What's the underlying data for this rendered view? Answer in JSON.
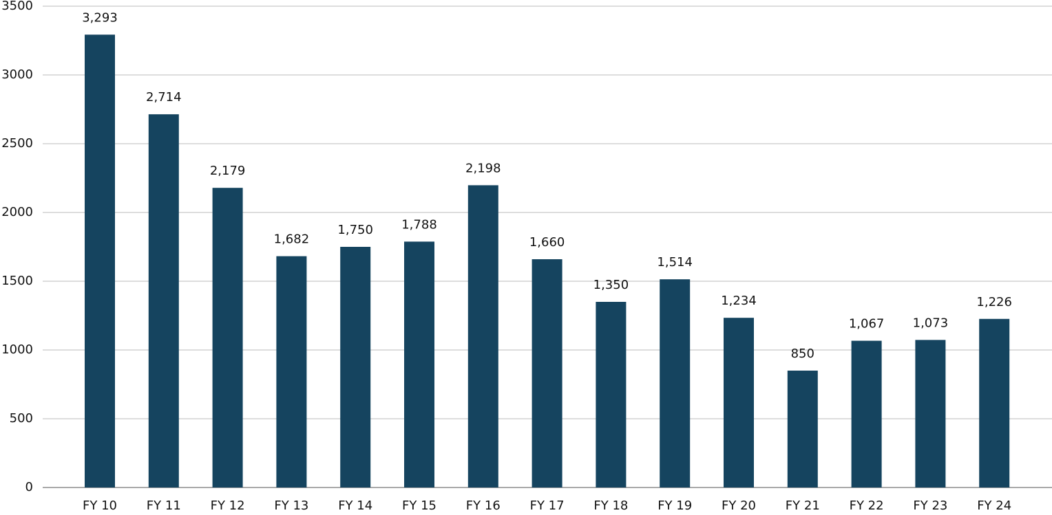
{
  "chart_data": {
    "type": "bar",
    "categories": [
      "FY 10",
      "FY 11",
      "FY 12",
      "FY 13",
      "FY 14",
      "FY 15",
      "FY 16",
      "FY 17",
      "FY 18",
      "FY 19",
      "FY 20",
      "FY 21",
      "FY 22",
      "FY 23",
      "FY 24"
    ],
    "values": [
      3293,
      2714,
      2179,
      1682,
      1750,
      1788,
      2198,
      1660,
      1350,
      1514,
      1234,
      850,
      1067,
      1073,
      1226
    ],
    "value_labels": [
      "3,293",
      "2,714",
      "2,179",
      "1,682",
      "1,750",
      "1,788",
      "2,198",
      "1,660",
      "1,350",
      "1,514",
      "1,234",
      "850",
      "1,067",
      "1,073",
      "1,226"
    ],
    "color": "#15445f",
    "ylim": [
      0,
      3500
    ],
    "yticks": [
      0,
      500,
      1000,
      1500,
      2000,
      2500,
      3000,
      3500
    ],
    "grid": true
  }
}
